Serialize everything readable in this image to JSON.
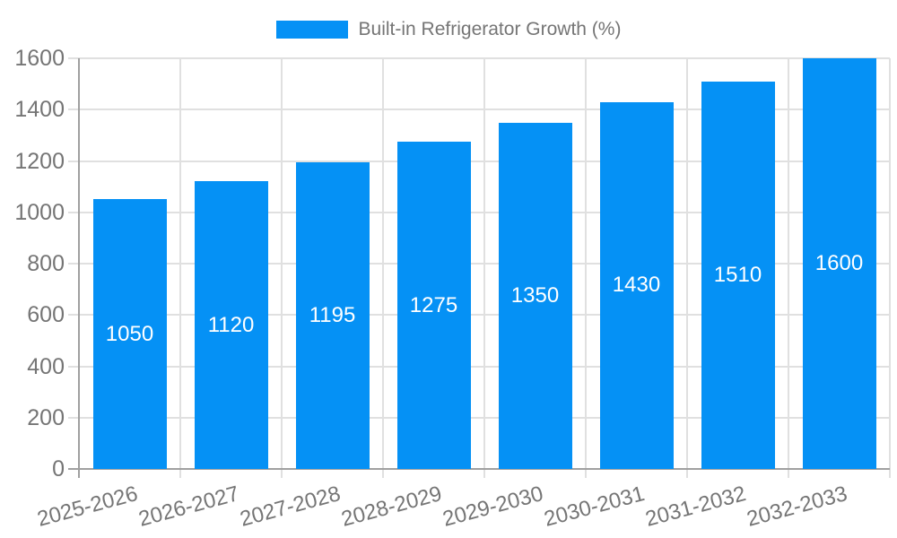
{
  "legend": {
    "label": "Built-in Refrigerator Growth (%)"
  },
  "chart_data": {
    "type": "bar",
    "title": "Built-in Refrigerator Growth (%)",
    "categories": [
      "2025-2026",
      "2026-2027",
      "2027-2028",
      "2028-2029",
      "2029-2030",
      "2030-2031",
      "2031-2032",
      "2032-2033"
    ],
    "series": [
      {
        "name": "Built-in Refrigerator Growth (%)",
        "values": [
          1050,
          1120,
          1195,
          1275,
          1350,
          1430,
          1510,
          1600
        ]
      }
    ],
    "values": [
      1050,
      1120,
      1195,
      1275,
      1350,
      1430,
      1510,
      1600
    ],
    "value_labels_visible": true,
    "xlabel": "",
    "ylabel": "",
    "ylim": [
      0,
      1600
    ],
    "yticks": [
      0,
      200,
      400,
      600,
      800,
      1000,
      1200,
      1400,
      1600
    ],
    "grid": true,
    "legend_position": "top-center",
    "x_label_rotation_deg": -15,
    "colors": {
      "bar": "#0591F5",
      "grid": "#e0e0e0",
      "axis": "#a0a0a0",
      "tick_label": "#757575",
      "value_label": "#ffffff",
      "legend_text": "#757575",
      "background": "#ffffff"
    }
  }
}
